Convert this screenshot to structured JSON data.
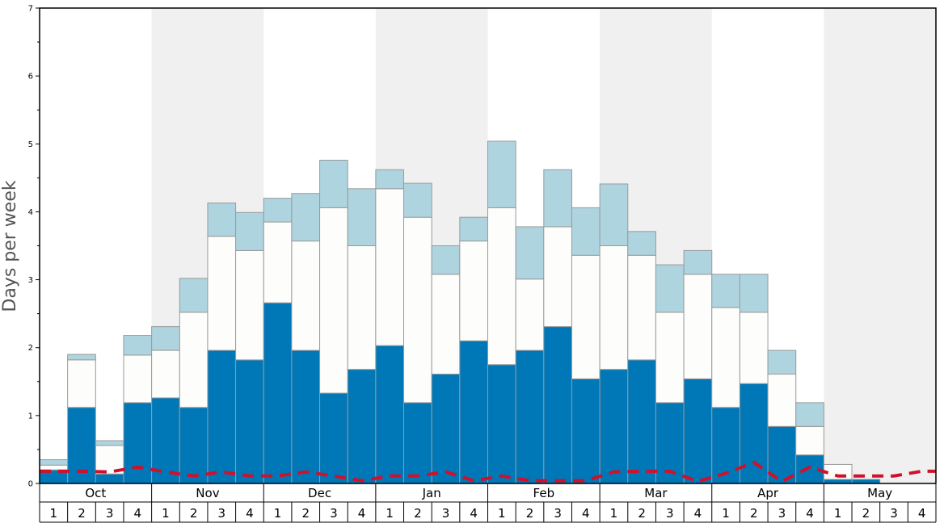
{
  "chart_data": {
    "type": "bar",
    "stacked": true,
    "ylabel": "Days per week",
    "xlabel": "",
    "ylim": [
      0,
      7
    ],
    "y_ticks": [
      "0",
      "1",
      "2",
      "3",
      "4",
      "5",
      "6",
      "7"
    ],
    "months": [
      "Oct",
      "Nov",
      "Dec",
      "Jan",
      "Feb",
      "Mar",
      "Apr",
      "May"
    ],
    "weeks": [
      "1",
      "2",
      "3",
      "4"
    ],
    "shaded_months": [
      "Nov",
      "Jan",
      "Mar",
      "May"
    ],
    "series": [
      {
        "color": "#0077b6",
        "values": [
          0.2,
          1.12,
          0.14,
          1.19,
          1.26,
          1.12,
          1.96,
          1.82,
          2.66,
          1.96,
          1.33,
          1.68,
          2.03,
          1.19,
          1.61,
          2.1,
          1.75,
          1.96,
          2.31,
          1.54,
          1.68,
          1.82,
          1.19,
          1.54,
          1.12,
          1.47,
          0.84,
          0.42,
          0.06,
          0.06,
          0.0,
          0.0
        ]
      },
      {
        "color": "#fdfdfb",
        "values": [
          0.07,
          0.7,
          0.42,
          0.7,
          0.7,
          1.4,
          1.68,
          1.61,
          1.19,
          1.61,
          2.73,
          1.82,
          2.31,
          2.73,
          1.47,
          1.47,
          2.31,
          1.05,
          1.47,
          1.82,
          1.82,
          1.54,
          1.33,
          1.54,
          1.47,
          1.05,
          0.77,
          0.42,
          0.22,
          0.0,
          0.0,
          0.0
        ]
      },
      {
        "color": "#aed4e0",
        "values": [
          0.08,
          0.08,
          0.07,
          0.29,
          0.35,
          0.5,
          0.49,
          0.56,
          0.35,
          0.7,
          0.7,
          0.84,
          0.28,
          0.5,
          0.42,
          0.35,
          0.98,
          0.77,
          0.84,
          0.7,
          0.91,
          0.35,
          0.7,
          0.35,
          0.49,
          0.56,
          0.35,
          0.35,
          0.0,
          0.0,
          0.0,
          0.0
        ]
      }
    ],
    "line": {
      "style": "dashed",
      "color": "#d0112b",
      "values": [
        0.18,
        0.18,
        0.17,
        0.24,
        0.17,
        0.11,
        0.17,
        0.11,
        0.11,
        0.17,
        0.11,
        0.04,
        0.11,
        0.11,
        0.17,
        0.04,
        0.11,
        0.04,
        0.04,
        0.04,
        0.17,
        0.18,
        0.18,
        0.03,
        0.15,
        0.31,
        0.03,
        0.24,
        0.11,
        0.11,
        0.11,
        0.18
      ]
    }
  }
}
